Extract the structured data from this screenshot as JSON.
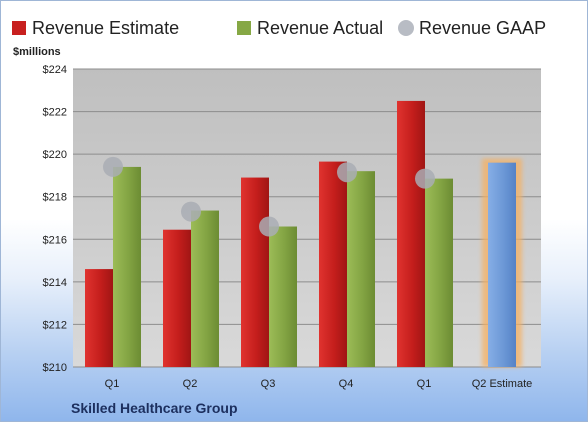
{
  "chart_data": {
    "type": "bar",
    "units_label": "$millions",
    "footer": "Skilled Healthcare Group",
    "categories": [
      "Q1",
      "Q2",
      "Q3",
      "Q4",
      "Q1",
      "Q2 Estimate"
    ],
    "ylim": [
      210,
      224
    ],
    "yticks": [
      210,
      212,
      214,
      216,
      218,
      220,
      222,
      224
    ],
    "ytick_labels": [
      "$210",
      "$212",
      "$214",
      "$216",
      "$218",
      "$220",
      "$222",
      "$224"
    ],
    "grid": true,
    "legend_position": "top",
    "series": [
      {
        "name": "Revenue Estimate",
        "kind": "bar",
        "color": "#c8201f",
        "values": [
          214.6,
          216.45,
          218.9,
          219.65,
          222.5,
          null
        ]
      },
      {
        "name": "Revenue Actual",
        "kind": "bar",
        "color": "#86a845",
        "values": [
          219.4,
          217.35,
          216.6,
          219.2,
          218.85,
          null
        ]
      },
      {
        "name": "Revenue GAAP",
        "kind": "point",
        "color": "#b8bcc4",
        "values": [
          219.4,
          217.3,
          216.6,
          219.15,
          218.85,
          null
        ]
      },
      {
        "name": "Q2 Estimate",
        "kind": "bar",
        "color": "#6f9bd8",
        "glow": "#f5b062",
        "values": [
          null,
          null,
          null,
          null,
          null,
          219.6
        ]
      }
    ]
  }
}
